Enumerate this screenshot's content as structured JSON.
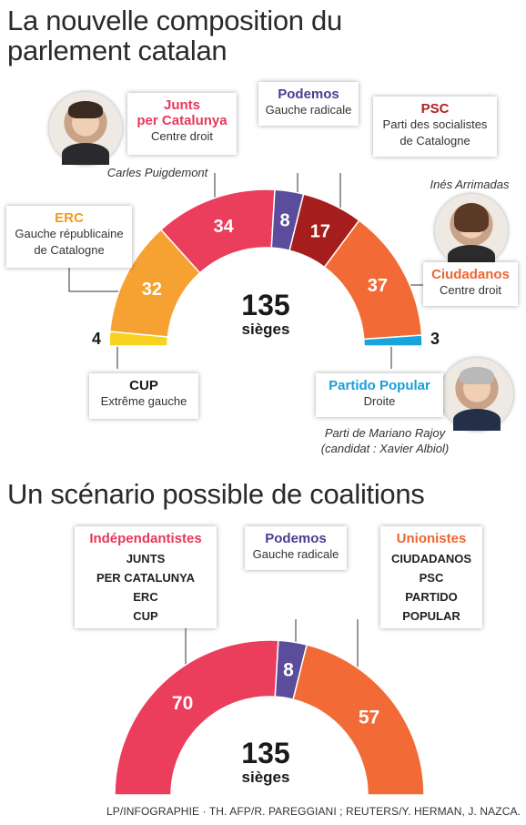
{
  "title1": "La nouvelle composition du parlement catalan",
  "title2": "Un scénario possible de coalitions",
  "chart_data": [
    {
      "type": "pie",
      "subtype": "parliament semicircle",
      "total": "135",
      "total_label": "sièges",
      "series": [
        {
          "name": "CUP",
          "value": 4,
          "color": "#f7d21e",
          "label_outside": true
        },
        {
          "name": "ERC",
          "value": 32,
          "color": "#f5a233",
          "label_outside": false
        },
        {
          "name": "Junts per Catalunya",
          "value": 34,
          "color": "#eb3d5c",
          "label_outside": false
        },
        {
          "name": "Podemos",
          "value": 8,
          "color": "#5c4c9c",
          "label_outside": false
        },
        {
          "name": "PSC",
          "value": 17,
          "color": "#a51d1d",
          "label_outside": false
        },
        {
          "name": "Ciudadanos",
          "value": 37,
          "color": "#f26b36",
          "label_outside": false
        },
        {
          "name": "Partido Popular",
          "value": 3,
          "color": "#1aa4dc",
          "label_outside": true
        }
      ]
    },
    {
      "type": "pie",
      "subtype": "parliament semicircle",
      "total": "135",
      "total_label": "sièges",
      "series": [
        {
          "name": "Indépendantistes",
          "value": 70,
          "color": "#eb3d5c"
        },
        {
          "name": "Podemos",
          "value": 8,
          "color": "#5c4c9c"
        },
        {
          "name": "Unionistes",
          "value": 57,
          "color": "#f26b36"
        }
      ]
    }
  ],
  "boxes": {
    "junts": {
      "name_line1": "Junts",
      "name_line2": "per Catalunya",
      "sub": "Centre droit",
      "color": "#e8375a"
    },
    "podemos": {
      "name": "Podemos",
      "sub": "Gauche radicale",
      "color": "#4a3e8f"
    },
    "psc": {
      "name": "PSC",
      "sub_line1": "Parti des socialistes",
      "sub_line2": "de Catalogne",
      "color": "#b21f1f"
    },
    "erc": {
      "name": "ERC",
      "sub_line1": "Gauche républicaine",
      "sub_line2": "de Catalogne",
      "color": "#f29a1e"
    },
    "ciudadanos": {
      "name": "Ciudadanos",
      "sub": "Centre droit",
      "color": "#ee6632"
    },
    "cup": {
      "name": "CUP",
      "sub": "Extrême gauche",
      "color": "#1a1a1a"
    },
    "pp": {
      "name": "Partido Popular",
      "sub": "Droite",
      "color": "#1b9ed8"
    },
    "indep": {
      "name": "Indépendantistes",
      "members": [
        "JUNTS",
        "PER CATALUNYA",
        "ERC",
        "CUP"
      ],
      "color": "#e8375a"
    },
    "podemos2": {
      "name": "Podemos",
      "sub": "Gauche radicale",
      "color": "#4a3e8f"
    },
    "unionistes": {
      "name": "Unionistes",
      "members": [
        "CIUDADANOS",
        "PSC",
        "PARTIDO",
        "POPULAR"
      ],
      "color": "#ee6632"
    }
  },
  "captions": {
    "puigdemont": "Carles Puigdemont",
    "arrimadas": "Inés Arrimadas",
    "pp_line1": "Parti de Mariano Rajoy",
    "pp_line2": "(candidat : Xavier Albiol)"
  },
  "credit": "LP/INFOGRAPHIE · TH.  AFP/R. PAREGGIANI ; REUTERS/Y. HERMAN, J. NAZCA."
}
